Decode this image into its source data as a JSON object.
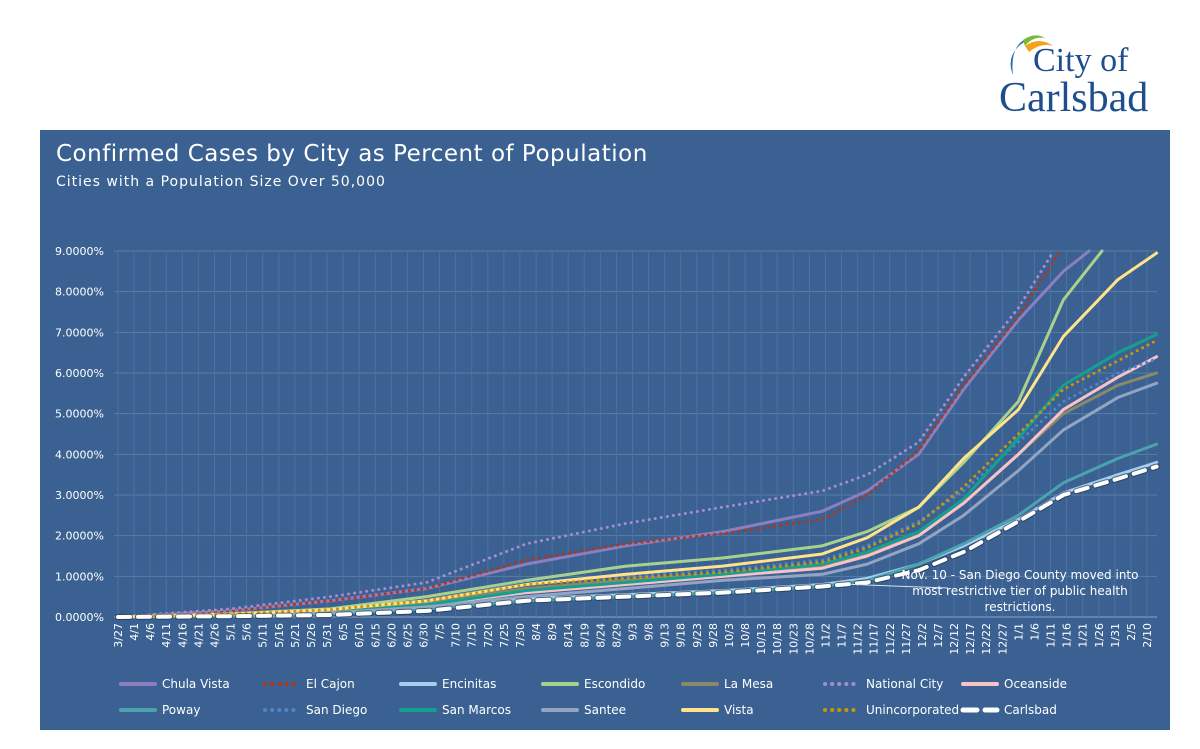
{
  "logo": {
    "line1": "City of",
    "line2": "Carlsbad"
  },
  "chart_data": {
    "type": "line",
    "title": "Confirmed Cases by City as Percent of Population",
    "subtitle": "Cities with a Population Size Over 50,000",
    "xlabel": "",
    "ylabel": "",
    "ylim": [
      0,
      9
    ],
    "y_ticks": [
      "0.0000%",
      "1.0000%",
      "2.0000%",
      "3.0000%",
      "4.0000%",
      "5.0000%",
      "6.0000%",
      "7.0000%",
      "8.0000%",
      "9.0000%"
    ],
    "x_ticks": [
      "3/27",
      "4/1",
      "4/6",
      "4/11",
      "4/16",
      "4/21",
      "4/26",
      "5/1",
      "5/6",
      "5/11",
      "5/16",
      "5/21",
      "5/26",
      "5/31",
      "6/5",
      "6/10",
      "6/15",
      "6/20",
      "6/25",
      "6/30",
      "7/5",
      "7/10",
      "7/15",
      "7/20",
      "7/25",
      "7/30",
      "8/4",
      "8/9",
      "8/14",
      "8/19",
      "8/24",
      "8/29",
      "9/3",
      "9/8",
      "9/13",
      "9/18",
      "9/23",
      "9/28",
      "10/3",
      "10/8",
      "10/13",
      "10/18",
      "10/23",
      "10/28",
      "11/2",
      "11/7",
      "11/12",
      "11/17",
      "11/22",
      "11/27",
      "12/2",
      "12/7",
      "12/12",
      "12/17",
      "12/22",
      "12/27",
      "1/1",
      "1/6",
      "1/11",
      "1/16",
      "1/21",
      "1/26",
      "1/31",
      "2/5",
      "2/10"
    ],
    "grid": true,
    "legend_position": "bottom",
    "annotation": {
      "date": "11/10",
      "text": "Nov. 10 - San Diego County moved into most restrictive tier of public health restrictions."
    },
    "series": [
      {
        "name": "Chula Vista",
        "color": "#8C7FC0",
        "style": "solid",
        "points": [
          [
            "3/27",
            0
          ],
          [
            "5/1",
            0.15
          ],
          [
            "6/1",
            0.4
          ],
          [
            "7/1",
            0.7
          ],
          [
            "8/1",
            1.3
          ],
          [
            "9/1",
            1.75
          ],
          [
            "10/1",
            2.1
          ],
          [
            "11/1",
            2.6
          ],
          [
            "11/15",
            3.1
          ],
          [
            "12/1",
            4.0
          ],
          [
            "12/15",
            5.6
          ],
          [
            "1/1",
            7.3
          ],
          [
            "1/15",
            8.5
          ],
          [
            "1/23",
            9.0
          ]
        ]
      },
      {
        "name": "El Cajon",
        "color": "#B0361A",
        "style": "dotted",
        "points": [
          [
            "3/27",
            0
          ],
          [
            "5/1",
            0.15
          ],
          [
            "6/1",
            0.4
          ],
          [
            "7/1",
            0.7
          ],
          [
            "8/1",
            1.4
          ],
          [
            "9/1",
            1.8
          ],
          [
            "10/1",
            2.05
          ],
          [
            "11/1",
            2.4
          ],
          [
            "11/15",
            3.0
          ],
          [
            "12/1",
            4.1
          ],
          [
            "12/15",
            5.7
          ],
          [
            "1/1",
            7.4
          ],
          [
            "1/14",
            9.0
          ]
        ]
      },
      {
        "name": "Encinitas",
        "color": "#A9CDEE",
        "style": "solid",
        "points": [
          [
            "3/27",
            0
          ],
          [
            "5/1",
            0.03
          ],
          [
            "6/1",
            0.08
          ],
          [
            "7/1",
            0.2
          ],
          [
            "8/1",
            0.45
          ],
          [
            "9/1",
            0.55
          ],
          [
            "10/1",
            0.65
          ],
          [
            "11/1",
            0.8
          ],
          [
            "11/15",
            0.95
          ],
          [
            "12/1",
            1.3
          ],
          [
            "12/15",
            1.75
          ],
          [
            "1/1",
            2.4
          ],
          [
            "1/15",
            3.05
          ],
          [
            "2/1",
            3.5
          ],
          [
            "2/13",
            3.8
          ]
        ]
      },
      {
        "name": "Escondido",
        "color": "#A9D18E",
        "style": "solid",
        "points": [
          [
            "3/27",
            0
          ],
          [
            "5/1",
            0.08
          ],
          [
            "6/1",
            0.2
          ],
          [
            "7/1",
            0.5
          ],
          [
            "8/1",
            0.9
          ],
          [
            "9/1",
            1.25
          ],
          [
            "10/1",
            1.45
          ],
          [
            "11/1",
            1.75
          ],
          [
            "11/15",
            2.1
          ],
          [
            "12/1",
            2.7
          ],
          [
            "12/15",
            3.8
          ],
          [
            "1/1",
            5.3
          ],
          [
            "1/15",
            7.8
          ],
          [
            "1/27",
            9.0
          ]
        ]
      },
      {
        "name": "La Mesa",
        "color": "#8A8A6A",
        "style": "solid",
        "points": [
          [
            "3/27",
            0
          ],
          [
            "5/1",
            0.08
          ],
          [
            "6/1",
            0.15
          ],
          [
            "7/1",
            0.35
          ],
          [
            "8/1",
            0.7
          ],
          [
            "9/1",
            0.9
          ],
          [
            "10/1",
            1.05
          ],
          [
            "11/1",
            1.25
          ],
          [
            "11/15",
            1.55
          ],
          [
            "12/1",
            2.0
          ],
          [
            "12/15",
            2.8
          ],
          [
            "1/1",
            4.0
          ],
          [
            "1/15",
            5.0
          ],
          [
            "2/1",
            5.7
          ],
          [
            "2/13",
            6.0
          ]
        ]
      },
      {
        "name": "National City",
        "color": "#A48CCF",
        "style": "dotted",
        "points": [
          [
            "3/27",
            0
          ],
          [
            "5/1",
            0.2
          ],
          [
            "6/1",
            0.5
          ],
          [
            "7/1",
            0.85
          ],
          [
            "8/1",
            1.8
          ],
          [
            "9/1",
            2.3
          ],
          [
            "10/1",
            2.7
          ],
          [
            "11/1",
            3.1
          ],
          [
            "11/15",
            3.5
          ],
          [
            "12/1",
            4.3
          ],
          [
            "12/15",
            5.9
          ],
          [
            "1/1",
            7.6
          ],
          [
            "1/12",
            9.0
          ]
        ]
      },
      {
        "name": "Oceanside",
        "color": "#F8C3C8",
        "style": "solid",
        "points": [
          [
            "3/27",
            0
          ],
          [
            "5/1",
            0.05
          ],
          [
            "6/1",
            0.12
          ],
          [
            "7/1",
            0.3
          ],
          [
            "8/1",
            0.6
          ],
          [
            "9/1",
            0.8
          ],
          [
            "10/1",
            1.0
          ],
          [
            "11/1",
            1.2
          ],
          [
            "11/15",
            1.5
          ],
          [
            "12/1",
            2.0
          ],
          [
            "12/15",
            2.8
          ],
          [
            "1/1",
            4.0
          ],
          [
            "1/15",
            5.1
          ],
          [
            "2/1",
            5.9
          ],
          [
            "2/13",
            6.4
          ]
        ]
      },
      {
        "name": "Poway",
        "color": "#4BA3B0",
        "style": "solid",
        "points": [
          [
            "3/27",
            0
          ],
          [
            "5/1",
            0.03
          ],
          [
            "6/1",
            0.08
          ],
          [
            "7/1",
            0.2
          ],
          [
            "8/1",
            0.4
          ],
          [
            "9/1",
            0.5
          ],
          [
            "10/1",
            0.6
          ],
          [
            "11/1",
            0.75
          ],
          [
            "11/15",
            0.9
          ],
          [
            "12/1",
            1.3
          ],
          [
            "12/15",
            1.8
          ],
          [
            "1/1",
            2.5
          ],
          [
            "1/15",
            3.3
          ],
          [
            "2/1",
            3.9
          ],
          [
            "2/13",
            4.25
          ]
        ]
      },
      {
        "name": "San Diego",
        "color": "#4F86C6",
        "style": "dotted",
        "points": [
          [
            "3/27",
            0
          ],
          [
            "5/1",
            0.08
          ],
          [
            "6/1",
            0.18
          ],
          [
            "7/1",
            0.4
          ],
          [
            "8/1",
            0.85
          ],
          [
            "9/1",
            1.0
          ],
          [
            "10/1",
            1.15
          ],
          [
            "11/1",
            1.4
          ],
          [
            "11/15",
            1.75
          ],
          [
            "12/1",
            2.35
          ],
          [
            "12/15",
            3.1
          ],
          [
            "1/1",
            4.3
          ],
          [
            "1/15",
            5.3
          ],
          [
            "2/1",
            6.0
          ],
          [
            "2/13",
            6.35
          ]
        ]
      },
      {
        "name": "San Marcos",
        "color": "#13A090",
        "style": "solid",
        "points": [
          [
            "3/27",
            0
          ],
          [
            "5/1",
            0.05
          ],
          [
            "6/1",
            0.12
          ],
          [
            "7/1",
            0.3
          ],
          [
            "8/1",
            0.65
          ],
          [
            "9/1",
            0.85
          ],
          [
            "10/1",
            1.05
          ],
          [
            "11/1",
            1.3
          ],
          [
            "11/15",
            1.6
          ],
          [
            "12/1",
            2.1
          ],
          [
            "12/15",
            2.9
          ],
          [
            "1/1",
            4.4
          ],
          [
            "1/15",
            5.7
          ],
          [
            "2/1",
            6.5
          ],
          [
            "2/13",
            6.95
          ]
        ]
      },
      {
        "name": "Santee",
        "color": "#93A5C2",
        "style": "solid",
        "points": [
          [
            "3/27",
            0
          ],
          [
            "5/1",
            0.05
          ],
          [
            "6/1",
            0.1
          ],
          [
            "7/1",
            0.25
          ],
          [
            "8/1",
            0.5
          ],
          [
            "9/1",
            0.7
          ],
          [
            "10/1",
            0.9
          ],
          [
            "11/1",
            1.05
          ],
          [
            "11/15",
            1.3
          ],
          [
            "12/1",
            1.8
          ],
          [
            "12/15",
            2.5
          ],
          [
            "1/1",
            3.6
          ],
          [
            "1/15",
            4.6
          ],
          [
            "2/1",
            5.4
          ],
          [
            "2/13",
            5.75
          ]
        ]
      },
      {
        "name": "Vista",
        "color": "#FFE38C",
        "style": "solid",
        "points": [
          [
            "3/27",
            0
          ],
          [
            "5/1",
            0.07
          ],
          [
            "6/1",
            0.18
          ],
          [
            "7/1",
            0.4
          ],
          [
            "8/1",
            0.8
          ],
          [
            "9/1",
            1.05
          ],
          [
            "10/1",
            1.25
          ],
          [
            "11/1",
            1.55
          ],
          [
            "11/15",
            1.95
          ],
          [
            "12/1",
            2.7
          ],
          [
            "12/15",
            3.9
          ],
          [
            "1/1",
            5.1
          ],
          [
            "1/15",
            6.9
          ],
          [
            "2/1",
            8.3
          ],
          [
            "2/13",
            8.95
          ]
        ]
      },
      {
        "name": "Unincorporated",
        "color": "#C7960F",
        "style": "dotted",
        "points": [
          [
            "3/27",
            0
          ],
          [
            "5/1",
            0.07
          ],
          [
            "6/1",
            0.18
          ],
          [
            "7/1",
            0.4
          ],
          [
            "8/1",
            0.8
          ],
          [
            "9/1",
            0.95
          ],
          [
            "10/1",
            1.1
          ],
          [
            "11/1",
            1.35
          ],
          [
            "11/15",
            1.7
          ],
          [
            "12/1",
            2.3
          ],
          [
            "12/15",
            3.2
          ],
          [
            "1/1",
            4.5
          ],
          [
            "1/15",
            5.6
          ],
          [
            "2/1",
            6.3
          ],
          [
            "2/13",
            6.8
          ]
        ]
      },
      {
        "name": "Carlsbad",
        "color": "#FFFFFF",
        "style": "dashed",
        "points": [
          [
            "3/27",
            0
          ],
          [
            "5/1",
            0.02
          ],
          [
            "6/1",
            0.05
          ],
          [
            "7/1",
            0.15
          ],
          [
            "8/1",
            0.4
          ],
          [
            "9/1",
            0.5
          ],
          [
            "10/1",
            0.6
          ],
          [
            "11/1",
            0.75
          ],
          [
            "11/15",
            0.85
          ],
          [
            "12/1",
            1.15
          ],
          [
            "12/15",
            1.6
          ],
          [
            "1/1",
            2.35
          ],
          [
            "1/15",
            3.0
          ],
          [
            "2/1",
            3.4
          ],
          [
            "2/13",
            3.7
          ]
        ]
      }
    ]
  }
}
